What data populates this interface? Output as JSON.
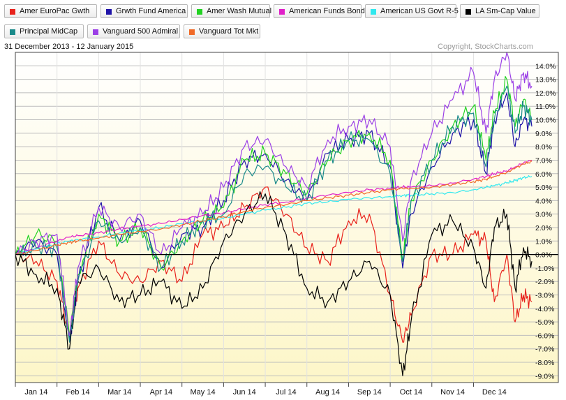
{
  "date_range": "31 December 2013 - 12 January 2015",
  "copyright": "Copyright, StockCharts.com",
  "colors": {
    "zero_line": "#000000",
    "grid": "#bdbdbd",
    "frame": "#444444",
    "fill_top": "#ffffff",
    "fill_bottom": "#fdf6c8"
  },
  "chart_data": {
    "type": "line",
    "ylim": [
      -9.5,
      15
    ],
    "yticks": [
      {
        "value": 14,
        "label": "14.0%"
      },
      {
        "value": 13,
        "label": "13.0%"
      },
      {
        "value": 12,
        "label": "12.0%"
      },
      {
        "value": 11,
        "label": "11.0%"
      },
      {
        "value": 10,
        "label": "10.0%"
      },
      {
        "value": 9,
        "label": "9.0%"
      },
      {
        "value": 8,
        "label": "8.0%"
      },
      {
        "value": 7,
        "label": "7.0%"
      },
      {
        "value": 6,
        "label": "6.0%"
      },
      {
        "value": 5,
        "label": "5.0%"
      },
      {
        "value": 4,
        "label": "4.0%"
      },
      {
        "value": 3,
        "label": "3.0%"
      },
      {
        "value": 2,
        "label": "2.0%"
      },
      {
        "value": 1,
        "label": "1.0%"
      },
      {
        "value": 0,
        "label": "0.0%"
      },
      {
        "value": -1,
        "label": "-1.0%"
      },
      {
        "value": -2,
        "label": "-2.0%"
      },
      {
        "value": -3,
        "label": "-3.0%"
      },
      {
        "value": -4,
        "label": "-4.0%"
      },
      {
        "value": -5,
        "label": "-5.0%"
      },
      {
        "value": -6,
        "label": "-6.0%"
      },
      {
        "value": -7,
        "label": "-7.0%"
      },
      {
        "value": -8,
        "label": "-8.0%"
      },
      {
        "value": -9,
        "label": "-9.0%"
      }
    ],
    "x_domain": [
      0,
      12.4
    ],
    "months": [
      "Jan 14",
      "Feb 14",
      "Mar 14",
      "Apr 14",
      "May 14",
      "Jun 14",
      "Jul 14",
      "Aug 14",
      "Sep 14",
      "Oct 14",
      "Nov 14",
      "Dec 14"
    ],
    "x": [
      0,
      0.5,
      1,
      1.3,
      1.5,
      2,
      2.5,
      3,
      3.5,
      4,
      4.5,
      5,
      5.5,
      6,
      6.5,
      7,
      7.5,
      8,
      8.5,
      9,
      9.3,
      9.5,
      10,
      10.5,
      11,
      11.3,
      11.5,
      11.8,
      12,
      12.2,
      12.4
    ],
    "series": [
      {
        "name": "Amer EuroPac Gwth",
        "color": "#e8221c",
        "values": [
          0,
          -0.5,
          -2.0,
          -6.0,
          -2.5,
          1.0,
          -1.5,
          -2.0,
          -0.5,
          -2.0,
          1.5,
          2.0,
          3.5,
          5.0,
          3.0,
          0.5,
          -0.5,
          2.5,
          3.0,
          -3.0,
          -6.5,
          -4.5,
          0,
          0,
          1.5,
          1.0,
          -3.5,
          0,
          -5.0,
          -3.0,
          -3.5
        ]
      },
      {
        "name": "Grwth Fund America",
        "color": "#1f13a8",
        "values": [
          0,
          1.0,
          0,
          -6.5,
          -2.0,
          3.5,
          1.0,
          2.5,
          -1.0,
          1.5,
          2.0,
          4.0,
          7.0,
          7.5,
          5.5,
          4.0,
          7.5,
          8.5,
          9.0,
          6.5,
          -1.0,
          3.0,
          6.5,
          9.0,
          10.0,
          6.0,
          10.0,
          12.0,
          8.0,
          10.0,
          9.5
        ]
      },
      {
        "name": "Amer Wash Mutual",
        "color": "#22d222",
        "values": [
          0,
          1.5,
          1.0,
          -6.0,
          -1.5,
          3.0,
          1.0,
          2.0,
          -1.0,
          1.0,
          2.5,
          3.5,
          7.0,
          7.5,
          6.0,
          4.5,
          7.0,
          8.5,
          9.0,
          7.0,
          -0.5,
          4.0,
          7.0,
          9.5,
          11.0,
          7.0,
          10.5,
          13.0,
          9.5,
          11.5,
          10.0
        ]
      },
      {
        "name": "American Funds Bond",
        "color": "#e01fc8",
        "values": [
          0,
          0.5,
          1.0,
          1.3,
          1.4,
          1.6,
          1.9,
          2.1,
          2.3,
          2.6,
          2.9,
          3.1,
          3.4,
          3.7,
          3.9,
          4.2,
          4.4,
          4.6,
          4.8,
          4.9,
          5.0,
          5.0,
          5.1,
          5.3,
          5.6,
          5.8,
          6.0,
          6.2,
          6.5,
          6.8,
          7.0
        ]
      },
      {
        "name": "American US Govt R-5",
        "color": "#30e8ee",
        "values": [
          0,
          0.4,
          0.8,
          1.0,
          1.1,
          1.3,
          1.6,
          1.8,
          2.0,
          2.3,
          2.5,
          2.7,
          3.0,
          3.3,
          3.5,
          3.8,
          3.9,
          4.1,
          4.2,
          4.3,
          4.4,
          4.4,
          4.5,
          4.6,
          4.8,
          5.0,
          5.1,
          5.3,
          5.5,
          5.7,
          5.8
        ]
      },
      {
        "name": "LA Sm-Cap Value",
        "color": "#000000",
        "values": [
          0,
          -1.5,
          -2.5,
          -7.0,
          -2.0,
          -1.0,
          -3.5,
          -3.0,
          -2.0,
          -4.0,
          -2.5,
          1.0,
          3.0,
          4.5,
          1.5,
          -2.5,
          -3.5,
          -2.0,
          -0.5,
          -3.0,
          -9.0,
          -5.0,
          1.5,
          2.5,
          0.5,
          -2.5,
          2.0,
          3.0,
          -2.5,
          0.5,
          -0.5
        ]
      },
      {
        "name": "Principal MidCap",
        "color": "#1a8a8a",
        "values": [
          0,
          0.5,
          0.5,
          -6.5,
          -2.0,
          2.5,
          1.0,
          2.0,
          -1.0,
          1.0,
          2.5,
          3.0,
          6.0,
          6.5,
          5.0,
          4.0,
          7.0,
          8.5,
          8.5,
          6.0,
          -0.5,
          4.0,
          7.0,
          9.5,
          10.5,
          6.5,
          10.0,
          12.5,
          9.0,
          11.0,
          10.0
        ]
      },
      {
        "name": "Vanguard 500 Admiral",
        "color": "#9b3fe6",
        "values": [
          0,
          1.0,
          1.5,
          -6.0,
          -1.0,
          3.5,
          2.0,
          3.0,
          0,
          2.0,
          3.0,
          5.0,
          8.0,
          8.5,
          6.5,
          5.0,
          8.5,
          9.5,
          10.0,
          8.0,
          1.0,
          5.5,
          9.0,
          11.5,
          13.5,
          9.0,
          13.0,
          15.0,
          11.5,
          13.5,
          12.5
        ]
      },
      {
        "name": "Vanguard Tot Mkt",
        "color": "#f06a28",
        "values": [
          0,
          0.3,
          0.7,
          0.9,
          1.0,
          1.2,
          1.5,
          1.7,
          1.9,
          2.2,
          2.5,
          2.8,
          3.2,
          3.5,
          3.7,
          4.0,
          4.2,
          4.4,
          4.6,
          4.8,
          4.9,
          4.9,
          5.0,
          5.2,
          5.4,
          5.6,
          5.8,
          6.1,
          6.4,
          6.7,
          6.9
        ]
      }
    ]
  }
}
